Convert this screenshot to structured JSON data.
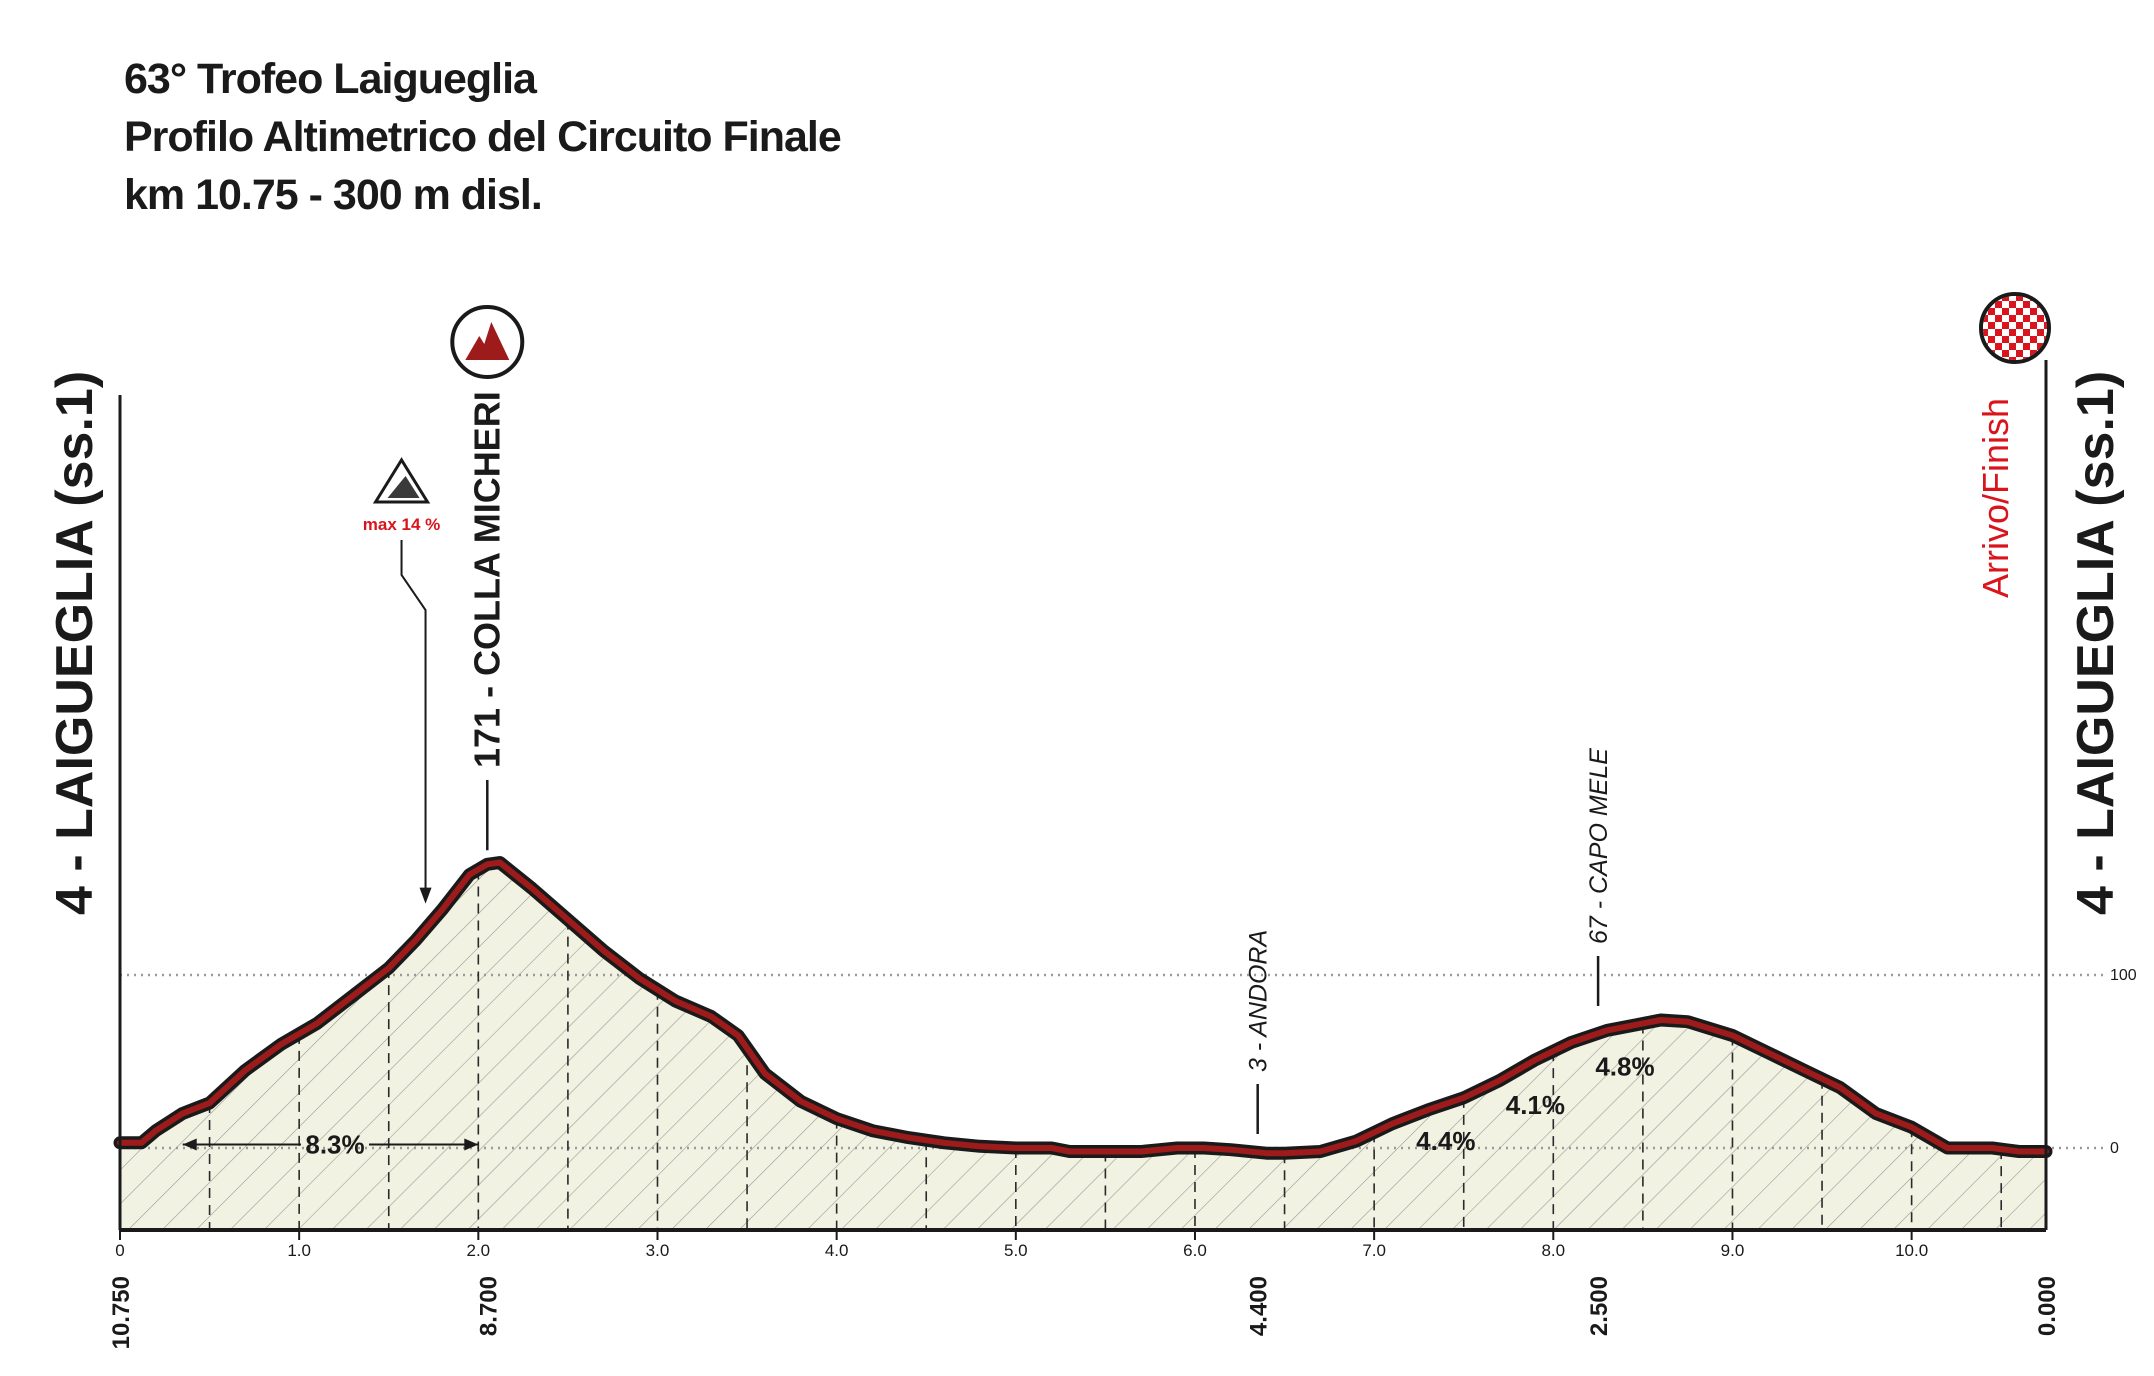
{
  "title_lines": [
    "63° Trofeo Laigueglia",
    "Profilo Altimetrico del Circuito Finale",
    "km 10.75 - 300 m disl."
  ],
  "chart_data": {
    "type": "area",
    "title": "63° Trofeo Laigueglia",
    "xlabel": "",
    "ylabel": "",
    "xlim": [
      0,
      10.75
    ],
    "ylim": [
      0,
      171
    ],
    "grid": {
      "horizontal_dotted_at": [
        0,
        100
      ]
    },
    "colors": {
      "line": "#9e1b1b",
      "fill": "#f1f2e2",
      "hatch": "#3a3a3a",
      "finish": "#d9141c",
      "title": "#1a1a1a"
    },
    "profile": {
      "x": [
        0,
        0.12,
        0.2,
        0.35,
        0.5,
        0.7,
        0.9,
        1.1,
        1.3,
        1.5,
        1.65,
        1.8,
        1.95,
        2.05,
        2.12,
        2.3,
        2.5,
        2.7,
        2.9,
        3.1,
        3.3,
        3.45,
        3.6,
        3.8,
        4.0,
        4.2,
        4.4,
        4.6,
        4.8,
        5.0,
        5.2,
        5.3,
        5.5,
        5.7,
        5.9,
        6.05,
        6.2,
        6.4,
        6.5,
        6.7,
        6.9,
        7.1,
        7.3,
        7.5,
        7.7,
        7.9,
        8.1,
        8.3,
        8.45,
        8.6,
        8.75,
        9.0,
        9.2,
        9.4,
        9.6,
        9.8,
        10.0,
        10.2,
        10.45,
        10.6,
        10.75
      ],
      "y": [
        3,
        3,
        10,
        20,
        26,
        45,
        60,
        72,
        88,
        104,
        120,
        138,
        158,
        164,
        165,
        150,
        132,
        114,
        98,
        85,
        76,
        65,
        43,
        27,
        17,
        10,
        6,
        3,
        1,
        0,
        0,
        -2,
        -2,
        -2,
        0,
        0,
        -1,
        -3,
        -3,
        -2,
        4,
        14,
        22,
        29,
        39,
        51,
        61,
        68,
        71,
        74,
        73,
        65,
        55,
        45,
        35,
        20,
        12,
        0,
        0,
        -2,
        -2
      ]
    },
    "x_ticks": [
      {
        "x": 0,
        "label": "0"
      },
      {
        "x": 1,
        "label": "1.0"
      },
      {
        "x": 2,
        "label": "2.0"
      },
      {
        "x": 3,
        "label": "3.0"
      },
      {
        "x": 4,
        "label": "4.0"
      },
      {
        "x": 5,
        "label": "5.0"
      },
      {
        "x": 6,
        "label": "6.0"
      },
      {
        "x": 7,
        "label": "7.0"
      },
      {
        "x": 8,
        "label": "8.0"
      },
      {
        "x": 9,
        "label": "9.0"
      },
      {
        "x": 10,
        "label": "10.0"
      }
    ],
    "km_to_go": [
      {
        "x": 0,
        "label": "10.750"
      },
      {
        "x": 2.05,
        "label": "8.700"
      },
      {
        "x": 6.35,
        "label": "4.400"
      },
      {
        "x": 8.25,
        "label": "2.500"
      },
      {
        "x": 10.75,
        "label": "0.000"
      }
    ],
    "y_ticks": [
      {
        "y": 0,
        "label": "0"
      },
      {
        "y": 100,
        "label": "100"
      }
    ],
    "places": [
      {
        "x": 2.05,
        "y": 164,
        "label": "171 - COLLA MICHERI",
        "bold": true,
        "italic": false,
        "icon": "mountain-gpm-icon"
      },
      {
        "x": 6.35,
        "y": 0,
        "label": "3 - ANDORA",
        "bold": false,
        "italic": true
      },
      {
        "x": 8.25,
        "y": 74,
        "label": "67 - CAPO MELE",
        "bold": false,
        "italic": true
      }
    ],
    "start_label": "4 - LAIGUEGLIA (ss.1)",
    "finish_label": "4 - LAIGUEGLIA (ss.1)",
    "finish_word": "Arrivo/Finish",
    "max_gradient": {
      "label": "max 14 %",
      "x": 1.75
    },
    "gradients": [
      {
        "label": "8.3%",
        "x": 1.2,
        "y": 2,
        "span": [
          0.35,
          2.0
        ]
      },
      {
        "label": "4.4%",
        "x": 7.4,
        "y": 4
      },
      {
        "label": "4.1%",
        "x": 7.9,
        "y": 25
      },
      {
        "label": "4.8%",
        "x": 8.4,
        "y": 47
      }
    ]
  }
}
